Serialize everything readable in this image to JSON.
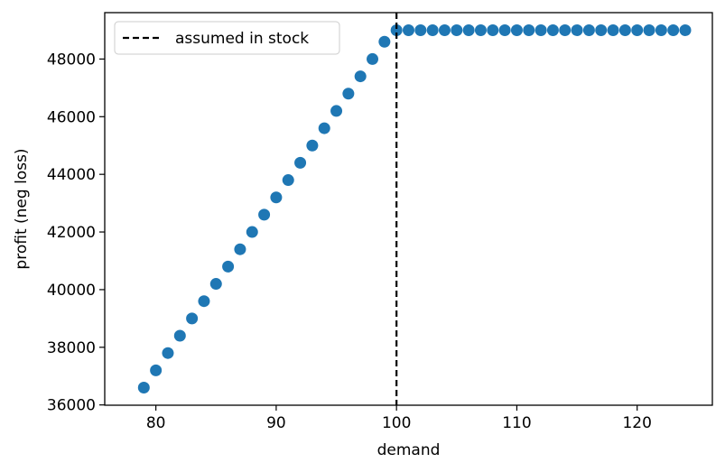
{
  "chart_data": {
    "type": "scatter",
    "title": "",
    "xlabel": "demand",
    "ylabel": "profit (neg loss)",
    "xlim": [
      75.75,
      126.25
    ],
    "ylim": [
      35990,
      49610
    ],
    "xticks": [
      80,
      90,
      100,
      110,
      120
    ],
    "yticks": [
      36000,
      38000,
      40000,
      42000,
      44000,
      46000,
      48000
    ],
    "grid": false,
    "legend_position": "top-left",
    "series": [
      {
        "color": "#1f77b4",
        "x": [
          79,
          80,
          81,
          82,
          83,
          84,
          85,
          86,
          87,
          88,
          89,
          90,
          91,
          92,
          93,
          94,
          95,
          96,
          97,
          98,
          99,
          100,
          101,
          102,
          103,
          104,
          105,
          106,
          107,
          108,
          109,
          110,
          111,
          112,
          113,
          114,
          115,
          116,
          117,
          118,
          119,
          120,
          121,
          122,
          123,
          124
        ],
        "y": [
          36600,
          37200,
          37800,
          38400,
          39000,
          39600,
          40200,
          40800,
          41400,
          42000,
          42600,
          43200,
          43800,
          44400,
          45000,
          45600,
          46200,
          46800,
          47400,
          48000,
          48600,
          49000,
          49000,
          49000,
          49000,
          49000,
          49000,
          49000,
          49000,
          49000,
          49000,
          49000,
          49000,
          49000,
          49000,
          49000,
          49000,
          49000,
          49000,
          49000,
          49000,
          49000,
          49000,
          49000,
          49000,
          49000
        ]
      }
    ],
    "vlines": [
      {
        "name": "assumed in stock",
        "x": 100,
        "style": "dashed",
        "color": "#000000"
      }
    ]
  }
}
